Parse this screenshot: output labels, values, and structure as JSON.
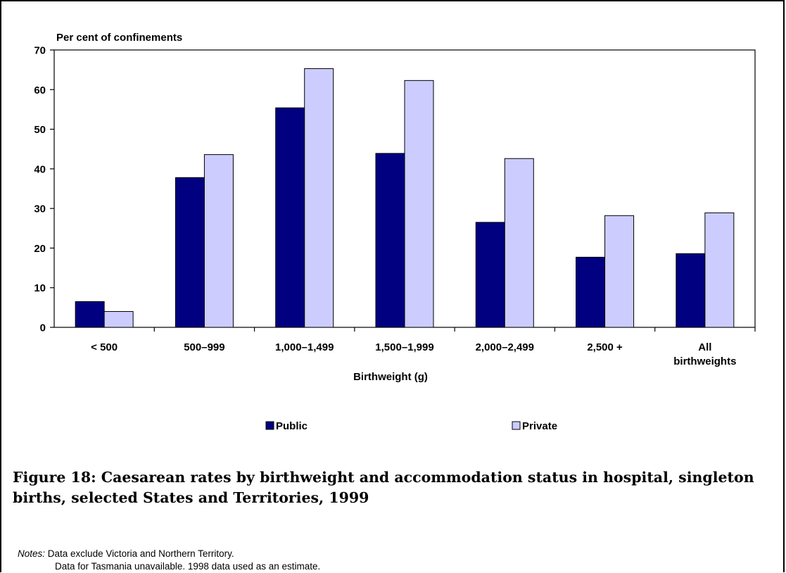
{
  "chart_data": {
    "type": "bar",
    "ylabel": "Per cent of confinements",
    "xlabel": "Birthweight (g)",
    "categories": [
      [
        "< 500"
      ],
      [
        "500–999"
      ],
      [
        "1,000–1,499"
      ],
      [
        "1,500–1,999"
      ],
      [
        "2,000–2,499"
      ],
      [
        "2,500 +"
      ],
      [
        "All",
        "birthweights"
      ]
    ],
    "series": [
      {
        "name": "Public",
        "color": "#000080",
        "values": [
          6.5,
          37.8,
          55.4,
          43.9,
          26.5,
          17.7,
          18.6
        ]
      },
      {
        "name": "Private",
        "color": "#ccccff",
        "values": [
          4.0,
          43.6,
          65.3,
          62.3,
          42.6,
          28.2,
          28.9
        ]
      }
    ],
    "ylim": [
      0,
      70
    ],
    "yticks": [
      0,
      10,
      20,
      30,
      40,
      50,
      60,
      70
    ],
    "grid": false,
    "legend_position": "bottom"
  },
  "caption": "Figure 18: Caesarean rates by birthweight and accommodation status in hospital, singleton births, selected States and Territories, 1999",
  "notes": {
    "label": "Notes:",
    "line1": " Data exclude Victoria and Northern Territory.",
    "line2": "Data for Tasmania unavailable. 1998 data used as an estimate."
  }
}
